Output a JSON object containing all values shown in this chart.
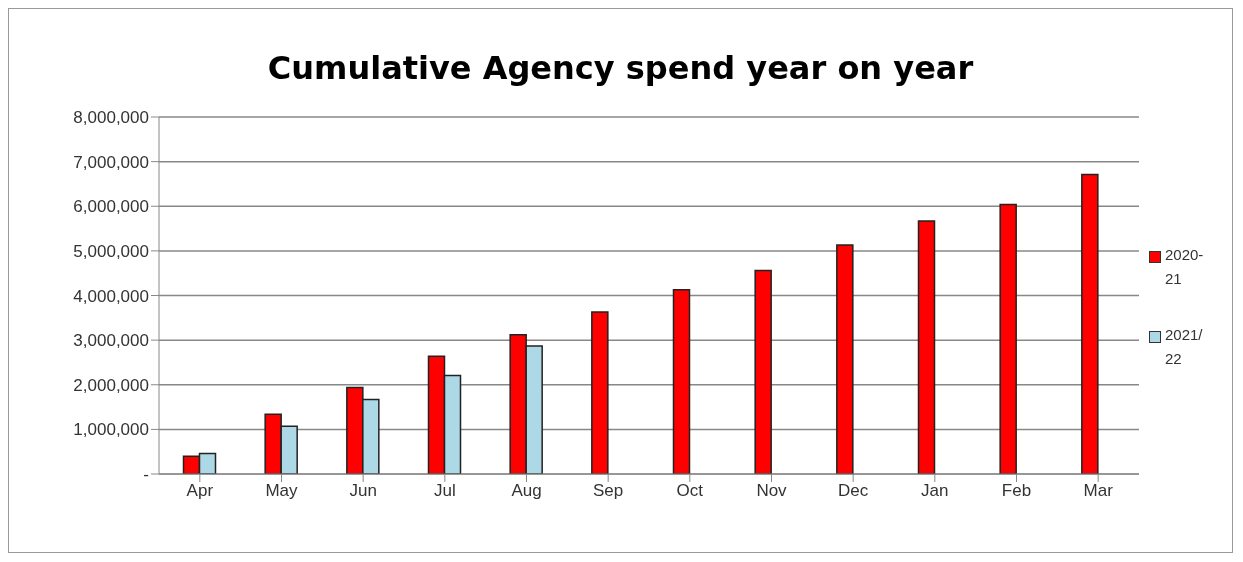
{
  "chart_data": {
    "type": "bar",
    "title": "Cumulative Agency spend year on year",
    "categories": [
      "Apr",
      "May",
      "Jun",
      "Jul",
      "Aug",
      "Sep",
      "Oct",
      "Nov",
      "Dec",
      "Jan",
      "Feb",
      "Mar"
    ],
    "series": [
      {
        "name": "2020-21",
        "color": "#ff0000",
        "values": [
          400000,
          1340000,
          1940000,
          2640000,
          3120000,
          3630000,
          4130000,
          4560000,
          5130000,
          5670000,
          6040000,
          6710000
        ]
      },
      {
        "name": "2021/22",
        "color": "#add8e6",
        "values": [
          460000,
          1070000,
          1670000,
          2210000,
          2870000,
          null,
          null,
          null,
          null,
          null,
          null,
          null
        ]
      }
    ],
    "ylim": [
      0,
      8000000
    ],
    "yticks": [
      {
        "value": 0,
        "label": "-"
      },
      {
        "value": 1000000,
        "label": "1,000,000"
      },
      {
        "value": 2000000,
        "label": "2,000,000"
      },
      {
        "value": 3000000,
        "label": "3,000,000"
      },
      {
        "value": 4000000,
        "label": "4,000,000"
      },
      {
        "value": 5000000,
        "label": "5,000,000"
      },
      {
        "value": 6000000,
        "label": "6,000,000"
      },
      {
        "value": 7000000,
        "label": "7,000,000"
      },
      {
        "value": 8000000,
        "label": "8,000,000"
      }
    ],
    "grid": "y",
    "legend": "right"
  }
}
